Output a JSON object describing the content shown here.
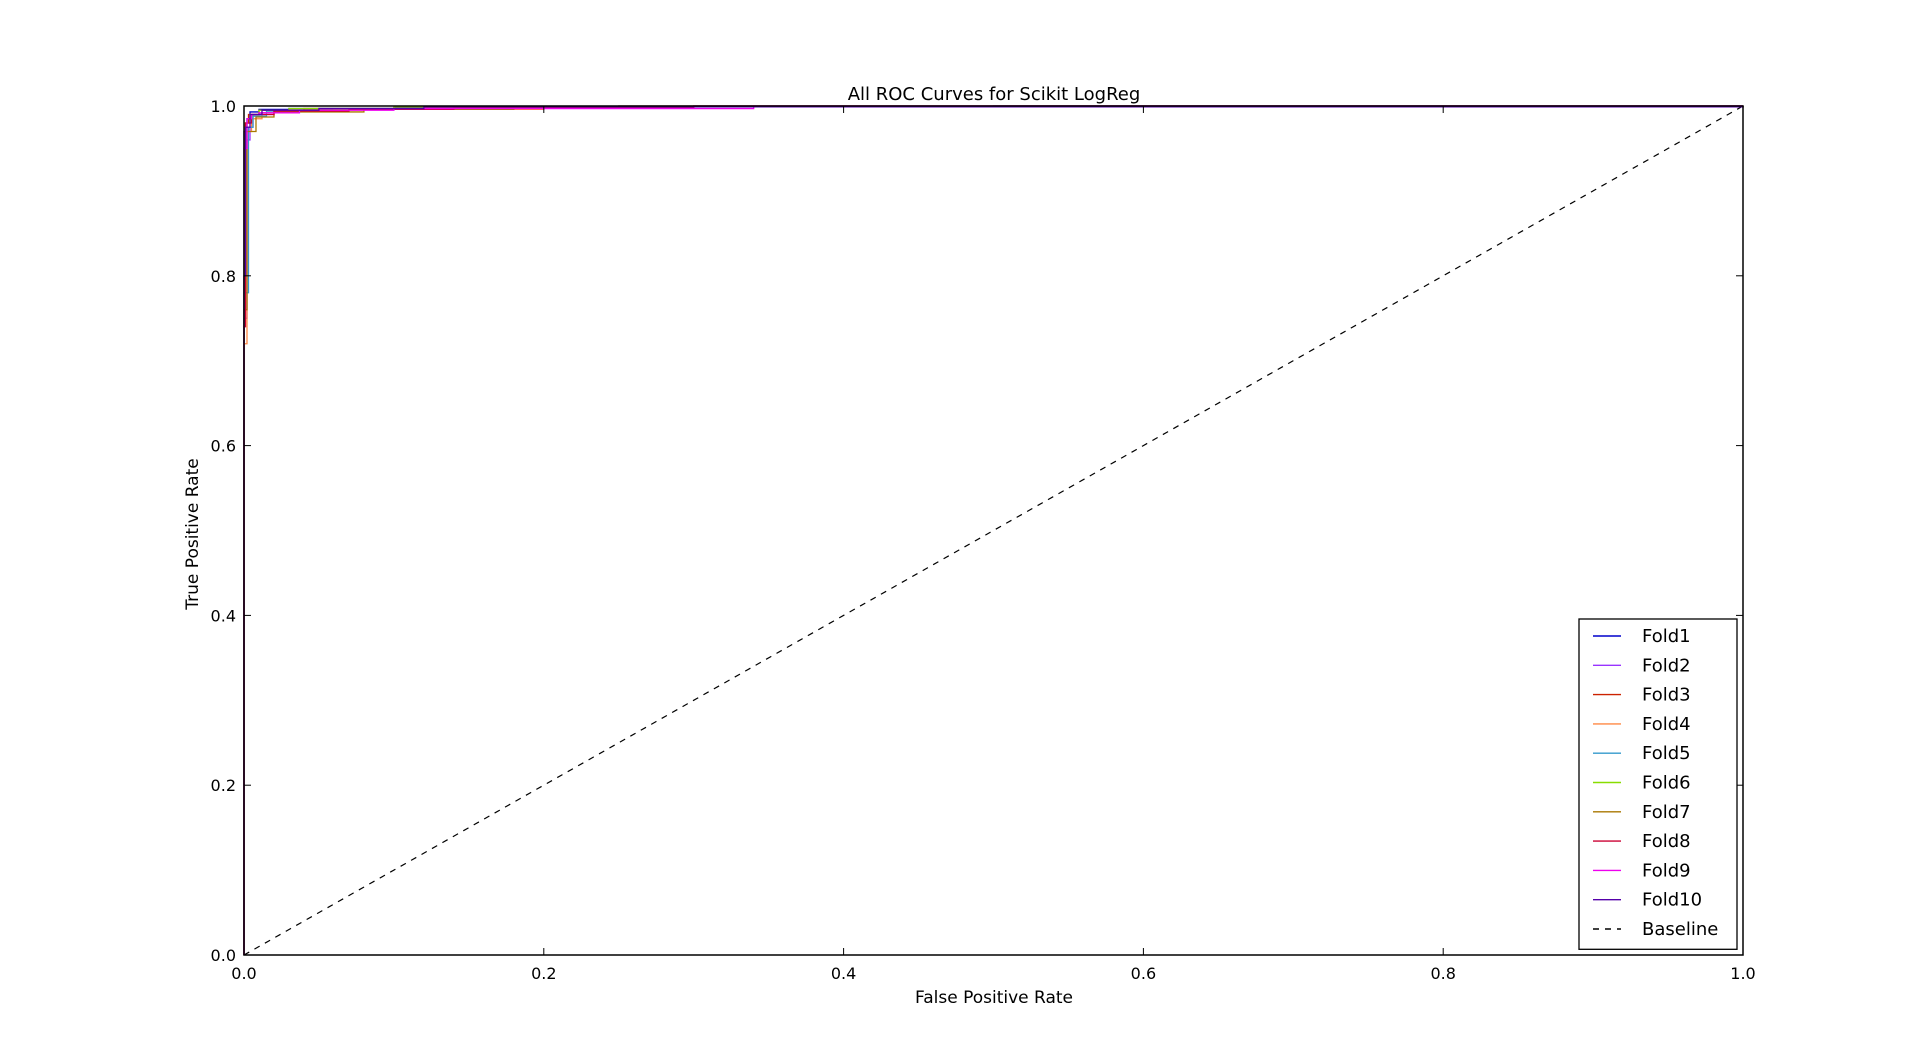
{
  "chart_data": {
    "type": "line",
    "title": "All ROC Curves for Scikit LogReg",
    "xlabel": "False Positive Rate",
    "ylabel": "True Positive Rate",
    "xlim": [
      0.0,
      1.0
    ],
    "ylim": [
      0.0,
      1.0
    ],
    "xticks": [
      "0.0",
      "0.2",
      "0.4",
      "0.6",
      "0.8",
      "1.0"
    ],
    "yticks": [
      "0.0",
      "0.2",
      "0.4",
      "0.6",
      "0.8",
      "1.0"
    ],
    "grid": false,
    "legend_position": "lower-right",
    "series": [
      {
        "name": "Fold1",
        "color": "#0000cc",
        "x": [
          0.0,
          0.0,
          0.0,
          0.002,
          0.004,
          0.01,
          0.03,
          0.1,
          0.2,
          0.5,
          1.0
        ],
        "y": [
          0.0,
          0.7,
          0.97,
          0.985,
          0.993,
          0.996,
          0.997,
          0.998,
          0.999,
          1.0,
          1.0
        ]
      },
      {
        "name": "Fold2",
        "color": "#9933ff",
        "x": [
          0.0,
          0.0,
          0.002,
          0.004,
          0.006,
          0.02,
          0.05,
          0.14,
          0.3,
          1.0
        ],
        "y": [
          0.0,
          0.75,
          0.96,
          0.975,
          0.99,
          0.994,
          0.996,
          0.998,
          1.0,
          1.0
        ]
      },
      {
        "name": "Fold3",
        "color": "#cc2200",
        "x": [
          0.0,
          0.0,
          0.001,
          0.003,
          0.01,
          0.04,
          0.12,
          0.25,
          1.0
        ],
        "y": [
          0.0,
          0.8,
          0.98,
          0.99,
          0.995,
          0.997,
          0.998,
          1.0,
          1.0
        ]
      },
      {
        "name": "Fold4",
        "color": "#ff8844",
        "x": [
          0.0,
          0.0,
          0.002,
          0.005,
          0.012,
          0.03,
          0.06,
          0.2,
          1.0
        ],
        "y": [
          0.0,
          0.72,
          0.97,
          0.985,
          0.992,
          0.995,
          0.996,
          0.999,
          1.0
        ]
      },
      {
        "name": "Fold5",
        "color": "#3399cc",
        "x": [
          0.0,
          0.0,
          0.003,
          0.006,
          0.015,
          0.05,
          0.15,
          1.0
        ],
        "y": [
          0.0,
          0.78,
          0.975,
          0.988,
          0.994,
          0.997,
          0.999,
          1.0
        ]
      },
      {
        "name": "Fold6",
        "color": "#88dd00",
        "x": [
          0.0,
          0.0,
          0.001,
          0.004,
          0.01,
          0.03,
          0.1,
          1.0
        ],
        "y": [
          0.0,
          0.82,
          0.98,
          0.99,
          0.995,
          0.997,
          0.999,
          1.0
        ]
      },
      {
        "name": "Fold7",
        "color": "#aa7700",
        "x": [
          0.0,
          0.0,
          0.002,
          0.008,
          0.02,
          0.08,
          0.18,
          1.0
        ],
        "y": [
          0.0,
          0.76,
          0.97,
          0.987,
          0.993,
          0.996,
          0.999,
          1.0
        ]
      },
      {
        "name": "Fold8",
        "color": "#cc0033",
        "x": [
          0.0,
          0.0,
          0.001,
          0.005,
          0.02,
          0.07,
          0.14,
          0.3,
          1.0
        ],
        "y": [
          0.0,
          0.74,
          0.98,
          0.99,
          0.994,
          0.996,
          0.998,
          1.0,
          1.0
        ]
      },
      {
        "name": "Fold9",
        "color": "#ee00ee",
        "x": [
          0.0,
          0.0,
          0.0,
          0.002,
          0.005,
          0.01,
          0.036,
          0.037,
          0.1,
          0.34,
          1.0
        ],
        "y": [
          0.0,
          0.66,
          0.95,
          0.985,
          0.99,
          0.992,
          0.992,
          0.995,
          0.997,
          1.0,
          1.0
        ]
      },
      {
        "name": "Fold10",
        "color": "#5500aa",
        "x": [
          0.0,
          0.0,
          0.001,
          0.004,
          0.012,
          0.05,
          0.12,
          1.0
        ],
        "y": [
          0.0,
          0.8,
          0.975,
          0.99,
          0.995,
          0.997,
          0.999,
          1.0
        ]
      }
    ],
    "baseline": {
      "name": "Baseline",
      "color": "#000000",
      "dashed": true,
      "x": [
        0.0,
        1.0
      ],
      "y": [
        0.0,
        1.0
      ]
    }
  }
}
